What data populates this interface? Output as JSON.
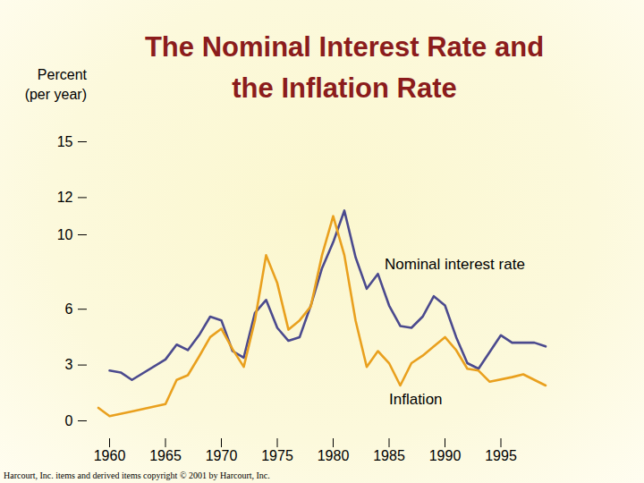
{
  "chart_data": {
    "type": "line",
    "title": "The Nominal Interest Rate and the Inflation Rate",
    "y_label": [
      "Percent",
      "(per year)"
    ],
    "source": "Harcourt, Inc. items and derived items copyright © 2001 by Harcourt, Inc.",
    "xlim": [
      1958,
      2000
    ],
    "xticks": [
      1960,
      1965,
      1970,
      1975,
      1980,
      1985,
      1990,
      1995
    ],
    "ylim": [
      0,
      15
    ],
    "yticks": [
      0,
      3,
      6,
      10,
      12,
      15
    ],
    "series": [
      {
        "name": "Nominal interest rate",
        "color": "#4b4a8e",
        "x": [
          1960,
          1961,
          1962,
          1965,
          1966,
          1967,
          1968,
          1969,
          1970,
          1971,
          1972,
          1973,
          1974,
          1975,
          1976,
          1977,
          1978,
          1979,
          1980,
          1981,
          1982,
          1983,
          1984,
          1985,
          1986,
          1987,
          1988,
          1989,
          1990,
          1991,
          1992,
          1993,
          1995,
          1996,
          1998,
          1999
        ],
        "values": [
          2.7,
          2.6,
          2.2,
          3.3,
          4.1,
          3.8,
          4.6,
          5.6,
          5.4,
          3.75,
          3.4,
          5.8,
          6.5,
          5.0,
          4.3,
          4.5,
          6.2,
          8.2,
          9.6,
          11.3,
          8.8,
          7.1,
          7.9,
          6.2,
          5.1,
          5.0,
          5.6,
          6.7,
          6.2,
          4.5,
          3.1,
          2.8,
          4.6,
          4.2,
          4.2,
          4.0
        ]
      },
      {
        "name": "Inflation",
        "color": "#e9a01e",
        "x": [
          1959,
          1960,
          1962,
          1965,
          1966,
          1967,
          1968,
          1969,
          1970,
          1971,
          1972,
          1973,
          1974,
          1975,
          1976,
          1977,
          1978,
          1979,
          1980,
          1981,
          1982,
          1983,
          1984,
          1985,
          1986,
          1987,
          1988,
          1989,
          1990,
          1991,
          1992,
          1993,
          1994,
          1996,
          1997,
          1999
        ],
        "values": [
          0.7,
          0.25,
          0.5,
          0.9,
          2.2,
          2.45,
          3.45,
          4.5,
          4.95,
          3.85,
          2.9,
          5.4,
          8.9,
          7.4,
          4.9,
          5.4,
          6.15,
          8.9,
          11.0,
          8.9,
          5.4,
          2.9,
          3.75,
          3.1,
          1.9,
          3.1,
          3.5,
          4.0,
          4.5,
          3.8,
          2.8,
          2.7,
          2.1,
          2.35,
          2.5,
          1.9
        ]
      }
    ]
  }
}
